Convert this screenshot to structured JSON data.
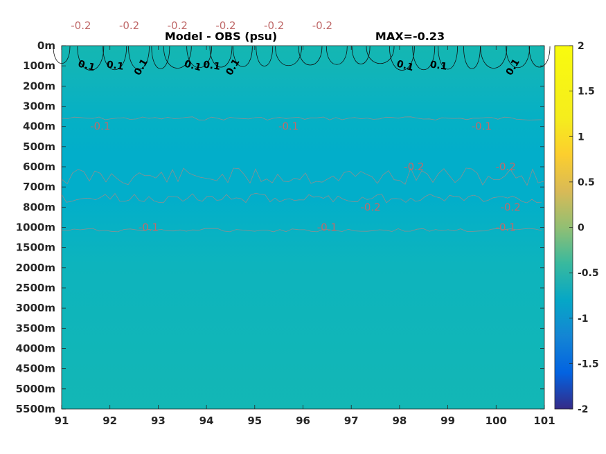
{
  "chart_data": {
    "type": "heatmap",
    "title_left": "Model - OBS (psu)",
    "title_right": "MAX=-0.23",
    "x_ticks": [
      "91",
      "92",
      "93",
      "94",
      "95",
      "96",
      "97",
      "98",
      "99",
      "100",
      "101"
    ],
    "xlim": [
      91,
      101
    ],
    "y_ticks": [
      "0m",
      "100m",
      "200m",
      "300m",
      "400m",
      "500m",
      "600m",
      "700m",
      "800m",
      "1000m",
      "1500m",
      "2000m",
      "2500m",
      "3000m",
      "3500m",
      "4000m",
      "4500m",
      "5000m",
      "5500m"
    ],
    "colorbar": {
      "colormap": "parula",
      "clim": [
        -2,
        2
      ],
      "ticks": [
        "2",
        "1.5",
        "1",
        "0.5",
        "0",
        "-0.5",
        "-1",
        "-1.5",
        "-2"
      ]
    },
    "background_value_approx": -0.05,
    "depth_bands": [
      {
        "from": "0m",
        "to": "200m",
        "value_approx": 0.05
      },
      {
        "from": "200m",
        "to": "300m",
        "value_approx": -0.05
      },
      {
        "from": "300m",
        "to": "600m",
        "value_approx": -0.13
      },
      {
        "from": "600m",
        "to": "800m",
        "value_approx": -0.2
      },
      {
        "from": "800m",
        "to": "1000m",
        "value_approx": -0.13
      },
      {
        "from": "1000m",
        "to": "5500m",
        "value_approx": -0.05
      }
    ],
    "contour_levels": [
      0.1,
      -0.1,
      -0.2
    ],
    "positive_contour_labels": [
      {
        "text": "0.1",
        "x": 91.5,
        "depth": "100m"
      },
      {
        "text": "0.1",
        "x": 92.1,
        "depth": "100m"
      },
      {
        "text": "0.1",
        "x": 92.7,
        "depth": "100m"
      },
      {
        "text": "0.1",
        "x": 93.7,
        "depth": "100m"
      },
      {
        "text": "0.1",
        "x": 94.1,
        "depth": "100m"
      },
      {
        "text": "0.1",
        "x": 94.6,
        "depth": "100m"
      },
      {
        "text": "0.1",
        "x": 98.1,
        "depth": "100m"
      },
      {
        "text": "0.1",
        "x": 98.8,
        "depth": "100m"
      },
      {
        "text": "0.1",
        "x": 100.4,
        "depth": "100m"
      }
    ],
    "negative_contour_labels": [
      {
        "text": "-0.1",
        "x": 91.8,
        "depth": "400m"
      },
      {
        "text": "-0.1",
        "x": 95.7,
        "depth": "400m"
      },
      {
        "text": "-0.1",
        "x": 99.7,
        "depth": "400m"
      },
      {
        "text": "-0.2",
        "x": 91.4,
        "depth": "750m"
      },
      {
        "text": "-0.2",
        "x": 92.4,
        "depth": "750m"
      },
      {
        "text": "-0.2",
        "x": 93.4,
        "depth": "750m"
      },
      {
        "text": "-0.2",
        "x": 94.4,
        "depth": "750m"
      },
      {
        "text": "-0.2",
        "x": 95.4,
        "depth": "750m"
      },
      {
        "text": "-0.2",
        "x": 96.4,
        "depth": "750m"
      },
      {
        "text": "-0.2",
        "x": 97.4,
        "depth": "800m"
      },
      {
        "text": "-0.2",
        "x": 98.3,
        "depth": "600m"
      },
      {
        "text": "-0.2",
        "x": 100.2,
        "depth": "600m"
      },
      {
        "text": "-0.2",
        "x": 100.3,
        "depth": "800m"
      },
      {
        "text": "-0.1",
        "x": 92.8,
        "depth": "1000m"
      },
      {
        "text": "-0.1",
        "x": 96.5,
        "depth": "1000m"
      },
      {
        "text": "-0.1",
        "x": 100.2,
        "depth": "1000m"
      }
    ]
  }
}
